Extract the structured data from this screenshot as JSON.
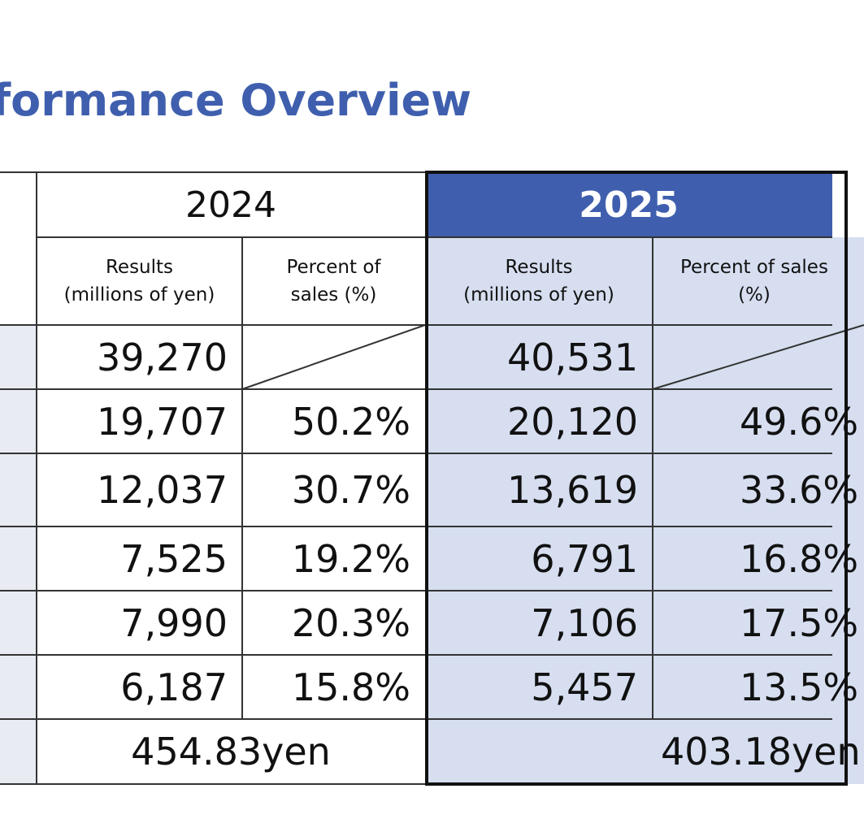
{
  "title": "formance Overview",
  "headers": {
    "year_2024": "2024",
    "year_2025": "2025",
    "results_label": "Results\n(millions of yen)",
    "percent_2024": "Percent of\nsales (%)",
    "percent_2025": "Percent of sales\n(%)"
  },
  "rows": [
    {
      "r2024": "39,270",
      "p2024": "",
      "r2025": "40,531",
      "p2025": ""
    },
    {
      "r2024": "19,707",
      "p2024": "50.2%",
      "r2025": "20,120",
      "p2025": "49.6%"
    },
    {
      "r2024": "12,037",
      "p2024": "30.7%",
      "r2025": "13,619",
      "p2025": "33.6%"
    },
    {
      "r2024": "7,525",
      "p2024": "19.2%",
      "r2025": "6,791",
      "p2025": "16.8%"
    },
    {
      "r2024": "7,990",
      "p2024": "20.3%",
      "r2025": "7,106",
      "p2025": "17.5%"
    },
    {
      "r2024": "6,187",
      "p2024": "15.8%",
      "r2025": "5,457",
      "p2025": "13.5%"
    }
  ],
  "eps": {
    "v2024": "454.83yen",
    "v2025": "403.18yen"
  },
  "colors": {
    "accent": "#3F5FAE",
    "highlight": "#D6DEF0",
    "label_bg": "#E8EBF2"
  }
}
